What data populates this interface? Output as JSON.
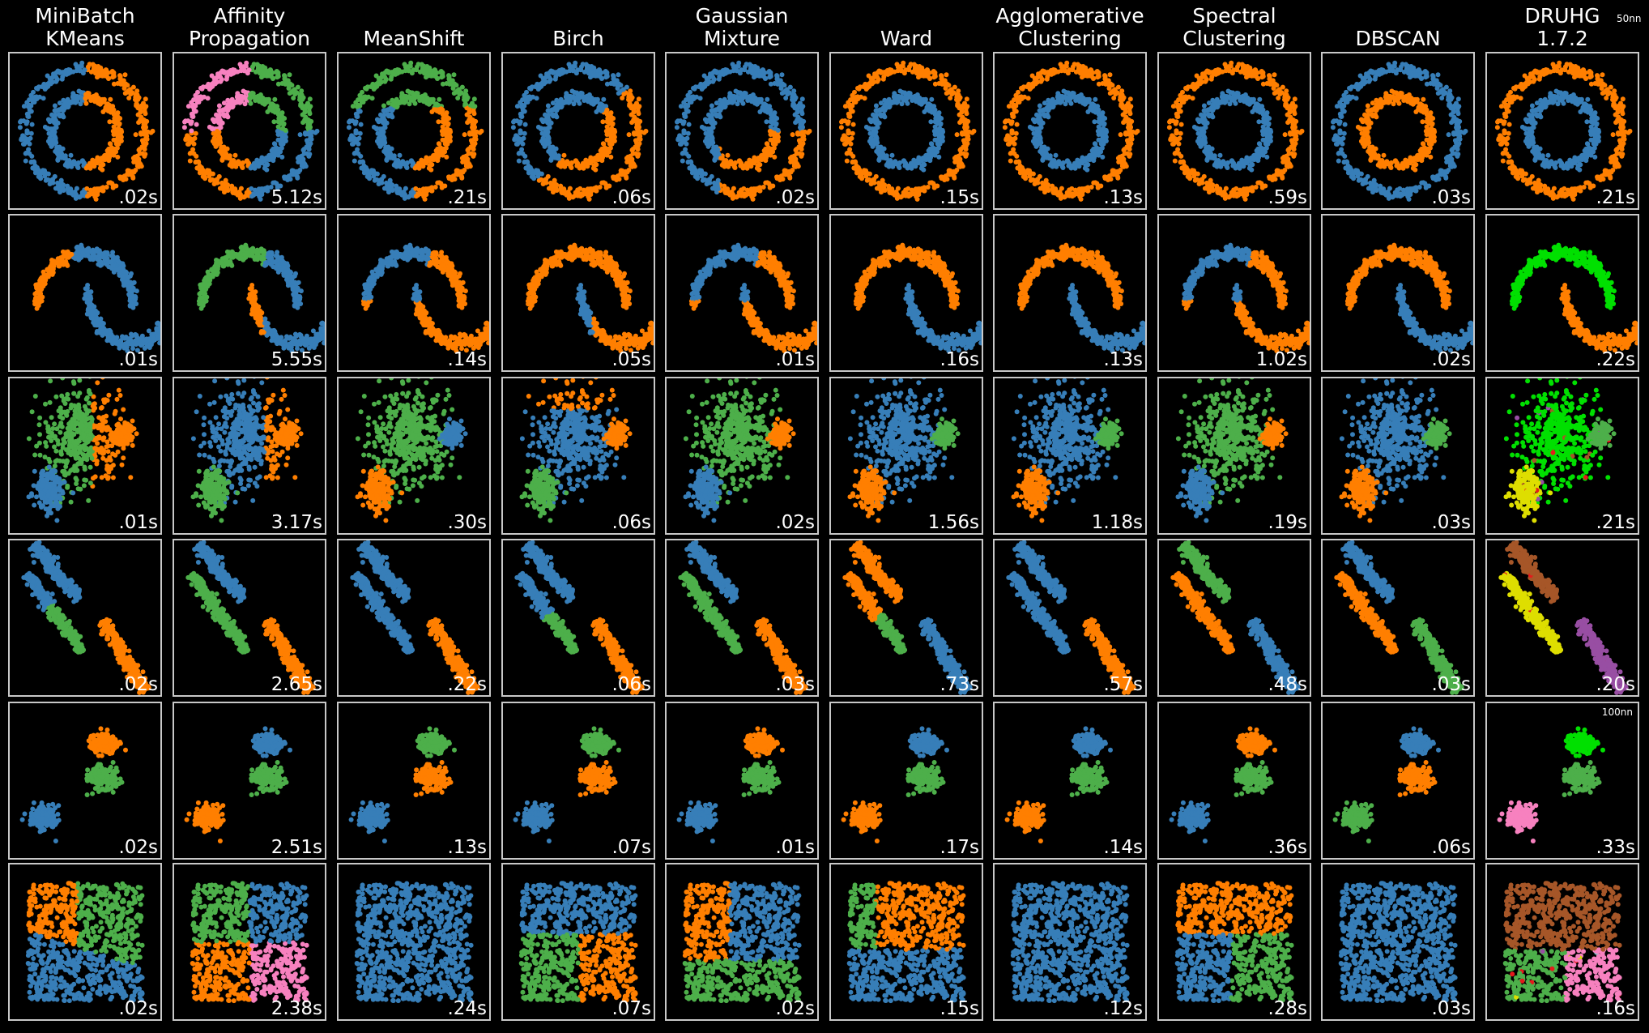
{
  "columns": [
    {
      "title": "MiniBatch\nKMeans"
    },
    {
      "title": "Affinity\nPropagation"
    },
    {
      "title": "MeanShift"
    },
    {
      "title": "Birch"
    },
    {
      "title": "Gaussian\nMixture"
    },
    {
      "title": "Ward"
    },
    {
      "title": "Agglomerative\nClustering"
    },
    {
      "title": "Spectral\nClustering"
    },
    {
      "title": "DBSCAN"
    },
    {
      "title": "DRUHG\n1.7.2"
    }
  ],
  "notes": {
    "top_right": "50nn",
    "row5_druhg": "100nn"
  },
  "colors": {
    "blue": "#377eb8",
    "orange": "#ff7f00",
    "green": "#4daf4a",
    "pink": "#f781bf",
    "bright_green": "#00e000",
    "yellow": "#dede00",
    "brown": "#a65628",
    "purple": "#984ea3",
    "red": "#e41a1c",
    "cyan": "#66cccc"
  },
  "chart_data": {
    "type": "scatter",
    "datasets": [
      "noisy_circles",
      "noisy_moons",
      "varied",
      "aniso",
      "blobs",
      "no_structure"
    ],
    "algorithms": [
      "MiniBatch KMeans",
      "Affinity Propagation",
      "MeanShift",
      "Birch",
      "Gaussian Mixture",
      "Ward",
      "Agglomerative Clustering",
      "Spectral Clustering",
      "DBSCAN",
      "DRUHG 1.7.2"
    ],
    "times": [
      [
        ".02s",
        "5.12s",
        ".21s",
        ".06s",
        ".02s",
        ".15s",
        ".13s",
        ".59s",
        ".03s",
        ".21s"
      ],
      [
        ".01s",
        "5.55s",
        ".14s",
        ".05s",
        ".01s",
        ".16s",
        ".13s",
        "1.02s",
        ".02s",
        ".22s"
      ],
      [
        ".01s",
        "3.17s",
        ".30s",
        ".06s",
        ".02s",
        "1.56s",
        "1.18s",
        ".19s",
        ".03s",
        ".21s"
      ],
      [
        ".02s",
        "2.65s",
        ".22s",
        ".06s",
        ".03s",
        ".73s",
        ".57s",
        ".48s",
        ".03s",
        ".20s"
      ],
      [
        ".02s",
        "2.51s",
        ".13s",
        ".07s",
        ".01s",
        ".17s",
        ".14s",
        ".36s",
        ".06s",
        ".33s"
      ],
      [
        ".02s",
        "2.38s",
        ".24s",
        ".07s",
        ".02s",
        ".15s",
        ".12s",
        ".28s",
        ".03s",
        ".16s"
      ]
    ]
  }
}
